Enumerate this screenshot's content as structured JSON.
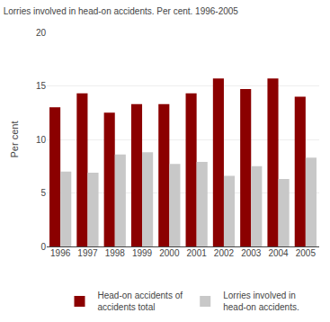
{
  "chart_data": {
    "type": "bar",
    "title": "Lorries involved in head-on accidents. Per cent. 1996-2005",
    "y_label": "Per cent",
    "categories": [
      "1996",
      "1997",
      "1998",
      "1999",
      "2000",
      "2001",
      "2002",
      "2003",
      "2004",
      "2005"
    ],
    "series": [
      {
        "name": "Head-on accidents of\naccidents total",
        "color": "#8B0000",
        "values": [
          13.0,
          14.3,
          12.5,
          13.3,
          13.3,
          14.3,
          15.7,
          14.7,
          15.7,
          14.0
        ]
      },
      {
        "name": "Lorries involved in\nhead-on accidents.",
        "color": "#C8C8C8",
        "values": [
          7.0,
          6.9,
          8.6,
          8.8,
          7.7,
          7.9,
          6.6,
          7.5,
          6.3,
          8.3
        ]
      }
    ],
    "ylim": [
      0,
      20
    ],
    "yticks": [
      0,
      5,
      10,
      15,
      20
    ],
    "grid": true,
    "legend": "bottom"
  }
}
